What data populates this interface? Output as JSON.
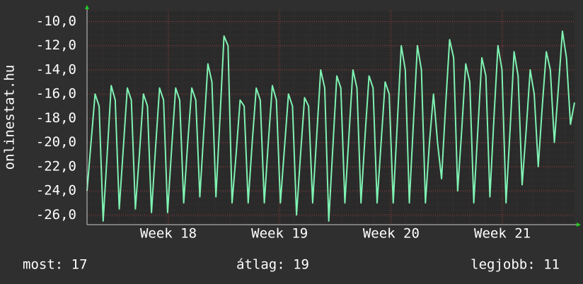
{
  "chart_data": {
    "type": "line",
    "y_label": "onlinestat.hu",
    "series": [
      {
        "color": "#7ff2b2",
        "values": [
          -24,
          -20,
          -16,
          -17,
          -26.5,
          -21,
          -15.3,
          -16.5,
          -25.5,
          -20.5,
          -15.5,
          -16.5,
          -25.5,
          -21,
          -16,
          -17,
          -25.8,
          -20.5,
          -15.5,
          -16.5,
          -25.8,
          -20.5,
          -15.5,
          -16.5,
          -25,
          -20,
          -15.5,
          -16.5,
          -24.5,
          -19,
          -13.5,
          -15,
          -24.5,
          -18,
          -11.2,
          -12,
          -25,
          -21,
          -16.5,
          -17,
          -25,
          -20,
          -15.5,
          -16.5,
          -25,
          -20,
          -15.3,
          -16.5,
          -25,
          -20.5,
          -16,
          -17,
          -26,
          -21,
          -16.3,
          -17,
          -25,
          -19.5,
          -14,
          -15.5,
          -26.5,
          -20.5,
          -14.5,
          -15.5,
          -25,
          -19.5,
          -14,
          -15.5,
          -25,
          -19.5,
          -14.5,
          -15.5,
          -25,
          -20,
          -15,
          -16,
          -25,
          -18.5,
          -12,
          -14,
          -25,
          -18.5,
          -12,
          -14,
          -25,
          -20,
          -16,
          -20,
          -23,
          -17,
          -11.5,
          -13,
          -24,
          -19,
          -13.5,
          -15,
          -25,
          -19,
          -13,
          -14.5,
          -24.5,
          -18,
          -12,
          -14,
          -25,
          -19,
          -12.5,
          -14.5,
          -23.5,
          -19,
          -14,
          -16,
          -22,
          -17,
          -12.5,
          -14,
          -20,
          -15.5,
          -10.8,
          -13,
          -18.5,
          -16.7
        ]
      }
    ],
    "xlim": [
      0,
      121
    ],
    "xticks": [
      {
        "value": 20.2,
        "label": "Week 18"
      },
      {
        "value": 47.8,
        "label": "Week 19"
      },
      {
        "value": 75.5,
        "label": "Week 20"
      },
      {
        "value": 103.1,
        "label": "Week 21"
      }
    ],
    "ylim": [
      -26.8,
      -9.1
    ],
    "yticks": [
      {
        "value": -10,
        "label": "-10,0"
      },
      {
        "value": -12,
        "label": "-12,0"
      },
      {
        "value": -14,
        "label": "-14,0"
      },
      {
        "value": -16,
        "label": "-16,0"
      },
      {
        "value": -18,
        "label": "-18,0"
      },
      {
        "value": -20,
        "label": "-20,0"
      },
      {
        "value": -22,
        "label": "-22,0"
      },
      {
        "value": -24,
        "label": "-24,0"
      },
      {
        "value": -26,
        "label": "-26,0"
      }
    ],
    "grid": true,
    "footer": [
      "most: 17",
      "átlag: 19",
      "legjobb: 11"
    ]
  }
}
